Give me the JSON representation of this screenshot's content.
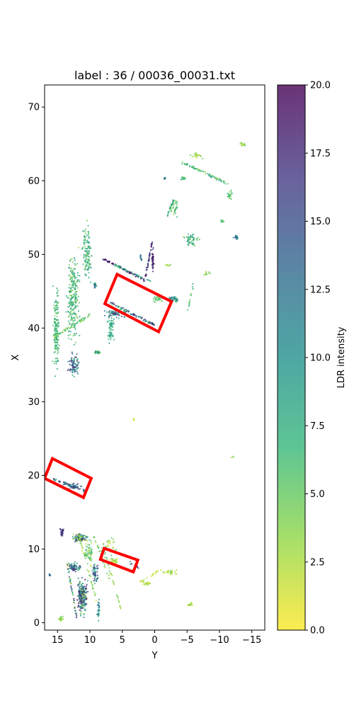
{
  "chart_data": {
    "type": "scatter",
    "title": "label : 36 / 00036_00031.txt",
    "xlabel": "Y",
    "ylabel": "X",
    "x_axis_inverted": true,
    "xlim": [
      17,
      -17
    ],
    "ylim": [
      -1,
      73
    ],
    "xticks": [
      15,
      10,
      5,
      0,
      -5,
      -10,
      -15
    ],
    "xtick_labels": [
      "15",
      "10",
      "5",
      "0",
      "−5",
      "−10",
      "−15"
    ],
    "yticks": [
      0,
      10,
      20,
      30,
      40,
      50,
      60,
      70
    ],
    "ytick_labels": [
      "0",
      "10",
      "20",
      "30",
      "40",
      "50",
      "60",
      "70"
    ],
    "grid": false,
    "colorbar": {
      "label": "LDR intensity",
      "range": [
        0,
        20
      ],
      "ticks": [
        0,
        2.5,
        5,
        7.5,
        10,
        12.5,
        15,
        17.5,
        20
      ],
      "tick_labels": [
        "0.0",
        "2.5",
        "5.0",
        "7.5",
        "10.0",
        "12.5",
        "15.0",
        "17.5",
        "20.0"
      ],
      "colormap": "viridis_r",
      "stops": [
        "#fde725",
        "#90d743",
        "#35b779",
        "#21918c",
        "#31688e",
        "#443983",
        "#440154"
      ],
      "alpha": 0.8
    },
    "boxes": [
      {
        "name": "box-1",
        "color": "#ff0000",
        "corners": [
          [
            5.8,
            47.3
          ],
          [
            -2.6,
            43.6
          ],
          [
            -0.6,
            39.5
          ],
          [
            7.7,
            43.3
          ]
        ]
      },
      {
        "name": "box-2",
        "color": "#ff0000",
        "corners": [
          [
            15.8,
            22.3
          ],
          [
            9.8,
            19.6
          ],
          [
            11.0,
            17.0
          ],
          [
            17.0,
            19.6
          ]
        ]
      },
      {
        "name": "box-3",
        "color": "#ff0000",
        "corners": [
          [
            7.8,
            10.1
          ],
          [
            2.6,
            8.5
          ],
          [
            3.3,
            6.9
          ],
          [
            8.4,
            8.6
          ]
        ]
      }
    ],
    "clusters": [
      {
        "x": 15.2,
        "y": 40,
        "sx": 0.6,
        "sy": 7,
        "n": 160,
        "imin": 4,
        "imax": 9
      },
      {
        "x": 12.6,
        "y": 44,
        "sx": 1.3,
        "sy": 8,
        "n": 240,
        "imin": 3,
        "imax": 10
      },
      {
        "x": 10.4,
        "y": 50,
        "sx": 1.0,
        "sy": 5,
        "n": 120,
        "imin": 4,
        "imax": 10
      },
      {
        "x": 12.5,
        "y": 35,
        "sx": 1.2,
        "sy": 2,
        "n": 80,
        "imin": 6,
        "imax": 20
      },
      {
        "x": 9.2,
        "y": 45.8,
        "sx": 0.3,
        "sy": 0.5,
        "n": 20,
        "imin": 6,
        "imax": 16
      },
      {
        "x": 6.8,
        "y": 40,
        "sx": 0.7,
        "sy": 3,
        "n": 60,
        "imin": 6,
        "imax": 10
      },
      {
        "x": 8.8,
        "y": 36.7,
        "sx": 0.7,
        "sy": 0.3,
        "n": 30,
        "imin": 3,
        "imax": 14
      },
      {
        "x": 0.3,
        "y": 49.2,
        "sx": 0.2,
        "sy": 2.2,
        "n": 40,
        "imin": 16,
        "imax": 20
      },
      {
        "x": -0.5,
        "y": 44,
        "sx": 1.0,
        "sy": 0.6,
        "n": 30,
        "imin": 3,
        "imax": 8
      },
      {
        "x": -3.0,
        "y": 44,
        "sx": 1.0,
        "sy": 0.6,
        "n": 40,
        "imin": 4,
        "imax": 14
      },
      {
        "x": -5.5,
        "y": 52,
        "sx": 1.8,
        "sy": 1.2,
        "n": 50,
        "imin": 4,
        "imax": 10
      },
      {
        "x": -12.5,
        "y": 52.3,
        "sx": 0.6,
        "sy": 0.3,
        "n": 20,
        "imin": 10,
        "imax": 14
      },
      {
        "x": -10.5,
        "y": 54.5,
        "sx": 0.5,
        "sy": 0.3,
        "n": 10,
        "imin": 4,
        "imax": 8
      },
      {
        "x": -11.5,
        "y": 58,
        "sx": 0.6,
        "sy": 1.0,
        "n": 20,
        "imin": 3,
        "imax": 8
      },
      {
        "x": -3,
        "y": 56.3,
        "sx": 0.8,
        "sy": 1.8,
        "n": 35,
        "imin": 3,
        "imax": 8
      },
      {
        "x": -4.4,
        "y": 60.3,
        "sx": 0.6,
        "sy": 0.3,
        "n": 15,
        "imin": 4,
        "imax": 9
      },
      {
        "x": -1.5,
        "y": 60.3,
        "sx": 0.2,
        "sy": 0.2,
        "n": 8,
        "imin": 8,
        "imax": 16
      },
      {
        "x": -6.5,
        "y": 63.4,
        "sx": 1.2,
        "sy": 0.5,
        "n": 20,
        "imin": 1,
        "imax": 5
      },
      {
        "x": -13.5,
        "y": 65,
        "sx": 1.0,
        "sy": 0.4,
        "n": 15,
        "imin": 2,
        "imax": 6
      },
      {
        "x": 11.5,
        "y": 11.5,
        "sx": 1.6,
        "sy": 0.7,
        "n": 90,
        "imin": 1,
        "imax": 20
      },
      {
        "x": 14.3,
        "y": 12.3,
        "sx": 0.4,
        "sy": 0.8,
        "n": 30,
        "imin": 12,
        "imax": 20
      },
      {
        "x": 10.2,
        "y": 9.5,
        "sx": 0.8,
        "sy": 2.4,
        "n": 60,
        "imin": 2,
        "imax": 8
      },
      {
        "x": 11.2,
        "y": 3.5,
        "sx": 1.0,
        "sy": 3.0,
        "n": 220,
        "imin": 2,
        "imax": 20
      },
      {
        "x": 12.5,
        "y": 7.5,
        "sx": 1.3,
        "sy": 0.8,
        "n": 70,
        "imin": 6,
        "imax": 20
      },
      {
        "x": 9.2,
        "y": 6.8,
        "sx": 0.6,
        "sy": 1.8,
        "n": 50,
        "imin": 6,
        "imax": 20
      },
      {
        "x": 7.2,
        "y": 10.2,
        "sx": 1.8,
        "sy": 1.6,
        "n": 40,
        "imin": 1,
        "imax": 6
      },
      {
        "x": 14.5,
        "y": 0.6,
        "sx": 0.6,
        "sy": 0.6,
        "n": 20,
        "imin": 2,
        "imax": 6
      },
      {
        "x": 8.7,
        "y": 1.8,
        "sx": 0.3,
        "sy": 2.0,
        "n": 25,
        "imin": 8,
        "imax": 14
      },
      {
        "x": 1.2,
        "y": 5.3,
        "sx": 0.8,
        "sy": 0.4,
        "n": 20,
        "imin": 1,
        "imax": 4
      },
      {
        "x": -2.5,
        "y": 6.8,
        "sx": 1.5,
        "sy": 0.6,
        "n": 25,
        "imin": 1,
        "imax": 4
      },
      {
        "x": -5.5,
        "y": 2.5,
        "sx": 0.8,
        "sy": 0.4,
        "n": 15,
        "imin": 1,
        "imax": 4
      },
      {
        "x": 3.2,
        "y": 27.6,
        "sx": 0.2,
        "sy": 0.2,
        "n": 5,
        "imin": 1,
        "imax": 4
      },
      {
        "x": 16.2,
        "y": 6.5,
        "sx": 0.2,
        "sy": 0.3,
        "n": 6,
        "imin": 8,
        "imax": 14
      },
      {
        "x": -12.0,
        "y": 22.5,
        "sx": 0.3,
        "sy": 0.2,
        "n": 4,
        "imin": 2,
        "imax": 5
      },
      {
        "x": -2.0,
        "y": 48.5,
        "sx": 0.8,
        "sy": 0.2,
        "n": 8,
        "imin": 2,
        "imax": 5
      },
      {
        "x": -8.0,
        "y": 47.5,
        "sx": 1.0,
        "sy": 0.4,
        "n": 10,
        "imin": 2,
        "imax": 6
      },
      {
        "x": 6.3,
        "y": 8.3,
        "sx": 0.9,
        "sy": 0.7,
        "n": 30,
        "imin": 1,
        "imax": 4
      },
      {
        "x": 12.5,
        "y": 18.5,
        "sx": 1.5,
        "sy": 0.5,
        "n": 40,
        "imin": 8,
        "imax": 20
      },
      {
        "x": 6,
        "y": 42,
        "sx": 2.2,
        "sy": 0.8,
        "n": 60,
        "imin": 6,
        "imax": 20
      }
    ],
    "segments": [
      {
        "x1": 8.2,
        "y1": 49.5,
        "x2": 1.5,
        "y2": 46.5,
        "n": 70,
        "imin": 17,
        "imax": 20
      },
      {
        "x1": 1.5,
        "y1": 46.7,
        "x2": 0.4,
        "y2": 51.6,
        "n": 45,
        "imin": 14,
        "imax": 20
      },
      {
        "x1": 6.8,
        "y1": 43.4,
        "x2": 0.0,
        "y2": 40.4,
        "n": 80,
        "imin": 4,
        "imax": 20
      },
      {
        "x1": 15.6,
        "y1": 19.5,
        "x2": 10.8,
        "y2": 17.9,
        "n": 50,
        "imin": 8,
        "imax": 20
      },
      {
        "x1": -4.2,
        "y1": 62.5,
        "x2": -11.5,
        "y2": 59.5,
        "n": 70,
        "imin": 3,
        "imax": 10
      },
      {
        "x1": 2.2,
        "y1": 49.8,
        "x2": 2.0,
        "y2": 49.2,
        "n": 10,
        "imin": 10,
        "imax": 16
      },
      {
        "x1": 15.5,
        "y1": 38.8,
        "x2": 10.0,
        "y2": 41.8,
        "n": 60,
        "imin": 3,
        "imax": 7
      },
      {
        "x1": 6.3,
        "y1": 48.6,
        "x2": 0.5,
        "y2": 46.3,
        "n": 40,
        "imin": 6,
        "imax": 10
      },
      {
        "x1": -1.8,
        "y1": 55.0,
        "x2": -3.0,
        "y2": 57.5,
        "n": 20,
        "imin": 6,
        "imax": 10
      },
      {
        "x1": -6.0,
        "y1": 46.0,
        "x2": -5.0,
        "y2": 42.0,
        "n": 15,
        "imin": 4,
        "imax": 8
      },
      {
        "x1": 11.8,
        "y1": 12.2,
        "x2": 9.0,
        "y2": 3.0,
        "n": 40,
        "imin": 1,
        "imax": 6
      },
      {
        "x1": 7.8,
        "y1": 10.0,
        "x2": 5.2,
        "y2": 1.8,
        "n": 30,
        "imin": 2,
        "imax": 6
      },
      {
        "x1": 9.5,
        "y1": 12.0,
        "x2": 7.0,
        "y2": 6.0,
        "n": 25,
        "imin": 2,
        "imax": 6
      },
      {
        "x1": 13.5,
        "y1": 8.0,
        "x2": 12.0,
        "y2": 0.5,
        "n": 45,
        "imin": 1,
        "imax": 20
      },
      {
        "x1": 2.2,
        "y1": 5.6,
        "x2": -1.0,
        "y2": 7.2,
        "n": 20,
        "imin": 1,
        "imax": 3
      },
      {
        "x1": 3.8,
        "y1": 8.2,
        "x2": 2.5,
        "y2": 7.5,
        "n": 10,
        "imin": 12,
        "imax": 20
      }
    ]
  }
}
